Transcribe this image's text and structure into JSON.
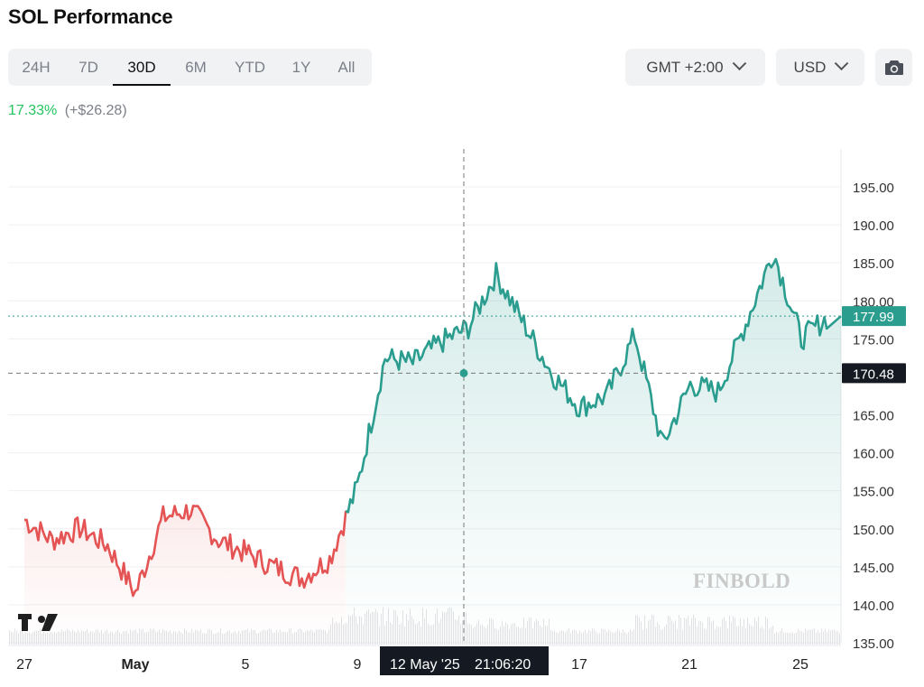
{
  "title": "SOL Performance",
  "tabs": [
    {
      "label": "24H",
      "active": false
    },
    {
      "label": "7D",
      "active": false
    },
    {
      "label": "30D",
      "active": true
    },
    {
      "label": "6M",
      "active": false
    },
    {
      "label": "YTD",
      "active": false
    },
    {
      "label": "1Y",
      "active": false
    },
    {
      "label": "All",
      "active": false
    }
  ],
  "timezone": {
    "label": "GMT +2:00"
  },
  "currency": {
    "label": "USD"
  },
  "camera": {
    "icon": "camera-icon"
  },
  "performance": {
    "percent": "17.33%",
    "change": "(+$26.28)"
  },
  "watermark": "FINBOLD",
  "colors": {
    "up": "#2a9d8f",
    "down": "#e45454",
    "percent": "#22c55e",
    "crosshair_label_bg": "#151a22"
  },
  "chart_data": {
    "type": "line",
    "title": "",
    "x": [
      "Apr 27",
      "Apr 28",
      "Apr 29",
      "Apr 30",
      "May 1",
      "May 2",
      "May 3",
      "May 4",
      "May 5",
      "May 6",
      "May 7",
      "May 8",
      "May 9",
      "May 10",
      "May 11",
      "May 12",
      "May 13",
      "May 14",
      "May 15",
      "May 16",
      "May 17",
      "May 18",
      "May 19",
      "May 20",
      "May 21",
      "May 22",
      "May 23",
      "May 24",
      "May 25",
      "May 26"
    ],
    "series": [
      {
        "values": [
          151.2,
          148.5,
          150.1,
          147.8,
          141.5,
          151.5,
          152.5,
          148.5,
          146.8,
          145.0,
          143.5,
          146.0,
          155.5,
          172.5,
          171.8,
          174.5,
          176.5,
          183.5,
          177.0,
          170.5,
          166.0,
          167.5,
          175.5,
          161.0,
          169.0,
          168.0,
          177.0,
          186.5,
          175.0,
          177.99
        ]
      }
    ],
    "xticks": [
      "27",
      "May",
      "5",
      "9",
      "17",
      "21",
      "25"
    ],
    "yticks": [
      "195.00",
      "190.00",
      "185.00",
      "180.00",
      "175.00",
      "165.00",
      "160.00",
      "155.00",
      "150.00",
      "145.00",
      "140.00",
      "135.00"
    ],
    "ylim": [
      135,
      198
    ],
    "start_price": 151.71,
    "current_price": "177.99",
    "crosshair": {
      "value": "170.48",
      "date_label": "12 May '25",
      "time_label": "21:06:20"
    },
    "volume_shown": true,
    "grid": true
  }
}
